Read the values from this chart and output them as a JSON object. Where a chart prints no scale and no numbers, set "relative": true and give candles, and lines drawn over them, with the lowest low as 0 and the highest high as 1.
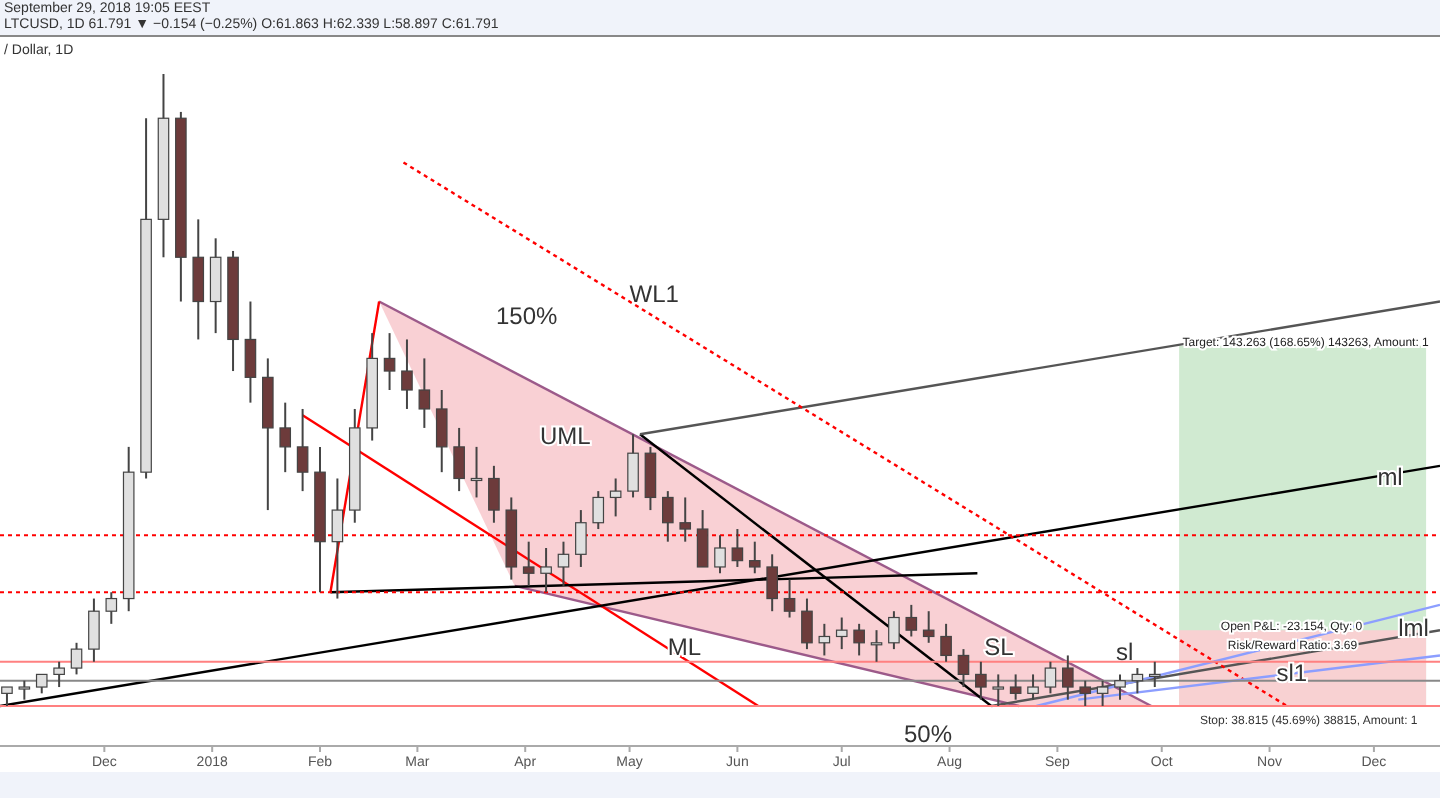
{
  "chart_data": {
    "type": "candlestick",
    "relative": true,
    "title": "LTCUSD, 1D 61.791 ▼ −0.154 (−0.25%) O:61.863 H:62.339 L:58.897 C:61.791",
    "subtitle": "/ Dollar, 1D",
    "xlim": [
      "2017-11-01",
      "2018-12-20"
    ],
    "xticks": [
      {
        "value": "2017-12-01",
        "label": "Dec"
      },
      {
        "value": "2018-01-01",
        "label": "2018"
      },
      {
        "value": "2018-02-01",
        "label": "Feb"
      },
      {
        "value": "2018-03-01",
        "label": "Mar"
      },
      {
        "value": "2018-04-01",
        "label": "Apr"
      },
      {
        "value": "2018-05-01",
        "label": "May"
      },
      {
        "value": "2018-06-01",
        "label": "Jun"
      },
      {
        "value": "2018-07-01",
        "label": "Jul"
      },
      {
        "value": "2018-08-01",
        "label": "Aug"
      },
      {
        "value": "2018-09-01",
        "label": "Sep"
      },
      {
        "value": "2018-10-01",
        "label": "Oct"
      },
      {
        "value": "2018-11-01",
        "label": "Nov"
      },
      {
        "value": "2018-12-01",
        "label": "Dec"
      }
    ],
    "x": [
      "2017-11-03",
      "2017-11-08",
      "2017-11-13",
      "2017-11-18",
      "2017-11-23",
      "2017-11-28",
      "2017-12-03",
      "2017-12-08",
      "2017-12-13",
      "2017-12-18",
      "2017-12-23",
      "2017-12-28",
      "2018-01-02",
      "2018-01-07",
      "2018-01-12",
      "2018-01-17",
      "2018-01-22",
      "2018-01-27",
      "2018-02-01",
      "2018-02-06",
      "2018-02-11",
      "2018-02-16",
      "2018-02-21",
      "2018-02-26",
      "2018-03-03",
      "2018-03-08",
      "2018-03-13",
      "2018-03-18",
      "2018-03-23",
      "2018-03-28",
      "2018-04-02",
      "2018-04-07",
      "2018-04-12",
      "2018-04-17",
      "2018-04-22",
      "2018-04-27",
      "2018-05-02",
      "2018-05-07",
      "2018-05-12",
      "2018-05-17",
      "2018-05-22",
      "2018-05-27",
      "2018-06-01",
      "2018-06-06",
      "2018-06-11",
      "2018-06-16",
      "2018-06-21",
      "2018-06-26",
      "2018-07-01",
      "2018-07-06",
      "2018-07-11",
      "2018-07-16",
      "2018-07-21",
      "2018-07-26",
      "2018-07-31",
      "2018-08-05",
      "2018-08-10",
      "2018-08-15",
      "2018-08-20",
      "2018-08-25",
      "2018-08-30",
      "2018-09-04",
      "2018-09-09",
      "2018-09-14",
      "2018-09-19",
      "2018-09-24",
      "2018-09-29"
    ],
    "ohlc": [
      [
        0.02,
        0.03,
        0.0,
        0.03
      ],
      [
        0.03,
        0.04,
        0.01,
        0.03
      ],
      [
        0.03,
        0.05,
        0.02,
        0.05
      ],
      [
        0.05,
        0.07,
        0.03,
        0.06
      ],
      [
        0.06,
        0.1,
        0.05,
        0.09
      ],
      [
        0.09,
        0.17,
        0.07,
        0.15
      ],
      [
        0.15,
        0.18,
        0.13,
        0.17
      ],
      [
        0.17,
        0.41,
        0.15,
        0.37
      ],
      [
        0.37,
        0.93,
        0.36,
        0.77
      ],
      [
        0.77,
        1.0,
        0.71,
        0.93
      ],
      [
        0.93,
        0.94,
        0.64,
        0.71
      ],
      [
        0.71,
        0.77,
        0.58,
        0.64
      ],
      [
        0.64,
        0.74,
        0.59,
        0.71
      ],
      [
        0.71,
        0.72,
        0.53,
        0.58
      ],
      [
        0.58,
        0.64,
        0.48,
        0.52
      ],
      [
        0.52,
        0.55,
        0.31,
        0.44
      ],
      [
        0.44,
        0.48,
        0.37,
        0.41
      ],
      [
        0.41,
        0.47,
        0.34,
        0.37
      ],
      [
        0.37,
        0.41,
        0.18,
        0.26
      ],
      [
        0.26,
        0.36,
        0.17,
        0.31
      ],
      [
        0.31,
        0.47,
        0.29,
        0.44
      ],
      [
        0.44,
        0.59,
        0.42,
        0.55
      ],
      [
        0.55,
        0.59,
        0.5,
        0.53
      ],
      [
        0.53,
        0.58,
        0.47,
        0.5
      ],
      [
        0.5,
        0.55,
        0.44,
        0.47
      ],
      [
        0.47,
        0.5,
        0.37,
        0.41
      ],
      [
        0.41,
        0.44,
        0.34,
        0.36
      ],
      [
        0.36,
        0.41,
        0.33,
        0.36
      ],
      [
        0.36,
        0.38,
        0.29,
        0.31
      ],
      [
        0.31,
        0.33,
        0.2,
        0.22
      ],
      [
        0.22,
        0.26,
        0.19,
        0.21
      ],
      [
        0.21,
        0.25,
        0.18,
        0.22
      ],
      [
        0.22,
        0.26,
        0.19,
        0.24
      ],
      [
        0.24,
        0.31,
        0.22,
        0.29
      ],
      [
        0.29,
        0.34,
        0.28,
        0.33
      ],
      [
        0.33,
        0.36,
        0.3,
        0.34
      ],
      [
        0.34,
        0.43,
        0.33,
        0.4
      ],
      [
        0.4,
        0.41,
        0.31,
        0.33
      ],
      [
        0.33,
        0.34,
        0.26,
        0.29
      ],
      [
        0.29,
        0.33,
        0.26,
        0.28
      ],
      [
        0.28,
        0.31,
        0.22,
        0.22
      ],
      [
        0.22,
        0.27,
        0.21,
        0.25
      ],
      [
        0.25,
        0.28,
        0.22,
        0.23
      ],
      [
        0.23,
        0.26,
        0.21,
        0.22
      ],
      [
        0.22,
        0.24,
        0.15,
        0.17
      ],
      [
        0.17,
        0.2,
        0.14,
        0.15
      ],
      [
        0.15,
        0.17,
        0.09,
        0.1
      ],
      [
        0.1,
        0.13,
        0.08,
        0.11
      ],
      [
        0.11,
        0.14,
        0.09,
        0.12
      ],
      [
        0.12,
        0.13,
        0.08,
        0.1
      ],
      [
        0.1,
        0.12,
        0.07,
        0.1
      ],
      [
        0.1,
        0.15,
        0.09,
        0.14
      ],
      [
        0.14,
        0.16,
        0.11,
        0.12
      ],
      [
        0.12,
        0.15,
        0.1,
        0.11
      ],
      [
        0.11,
        0.13,
        0.07,
        0.08
      ],
      [
        0.08,
        0.09,
        0.03,
        0.05
      ],
      [
        0.05,
        0.07,
        0.01,
        0.03
      ],
      [
        0.03,
        0.05,
        0.0,
        0.03
      ],
      [
        0.03,
        0.05,
        0.01,
        0.02
      ],
      [
        0.02,
        0.05,
        0.01,
        0.03
      ],
      [
        0.03,
        0.07,
        0.02,
        0.06
      ],
      [
        0.06,
        0.08,
        0.01,
        0.03
      ],
      [
        0.03,
        0.04,
        0.0,
        0.02
      ],
      [
        0.02,
        0.04,
        0.0,
        0.03
      ],
      [
        0.03,
        0.05,
        0.01,
        0.04
      ],
      [
        0.04,
        0.06,
        0.02,
        0.05
      ],
      [
        0.05,
        0.07,
        0.03,
        0.05
      ]
    ],
    "series": [
      {
        "type": "line",
        "color": "#9c5a8a",
        "x": [
          "2018-02-18",
          "2018-09-28"
        ],
        "values": [
          0.64,
          0
        ]
      },
      {
        "type": "line",
        "color": "#9c5a8a",
        "x": [
          "2018-03-29",
          "2018-08-21"
        ],
        "values": [
          0.19,
          0
        ]
      },
      {
        "type": "area",
        "color": "#c8e6c9",
        "x": [
          "2018-10-06",
          "2018-12-16"
        ],
        "values": [
          0.57,
          0.57
        ]
      },
      {
        "type": "area",
        "color": "#ffcdd2",
        "x": [
          "2018-10-06",
          "2018-12-16"
        ],
        "values": [
          0.12,
          0.12
        ]
      },
      {
        "type": "line",
        "color": "#ff0000",
        "x": [
          "2018-01-27",
          "2018-06-07"
        ],
        "values": [
          0.46,
          0
        ]
      },
      {
        "type": "line",
        "color": "#ff0000",
        "x": [
          "2018-02-04",
          "2018-02-18"
        ],
        "values": [
          0.18,
          0.64
        ]
      },
      {
        "type": "line",
        "color": "#000000",
        "x": [
          "2018-02-04",
          "2018-08-09"
        ],
        "values": [
          0.18,
          0.21
        ]
      },
      {
        "type": "line",
        "color": "#000000",
        "x": [
          "2017-11-01",
          "2018-12-20"
        ],
        "values": [
          0,
          0.38
        ]
      },
      {
        "type": "line",
        "color": "#000000",
        "x": [
          "2018-05-04",
          "2018-08-13"
        ],
        "values": [
          0.43,
          0
        ]
      },
      {
        "type": "line",
        "color": "#555555",
        "x": [
          "2018-05-04",
          "2018-12-20"
        ],
        "values": [
          0.43,
          0.64
        ]
      },
      {
        "type": "line",
        "color": "#555555",
        "x": [
          "2018-08-13",
          "2018-12-20"
        ],
        "values": [
          0,
          0.12
        ]
      },
      {
        "type": "line",
        "color": "#ff0000",
        "line_style": "dotted",
        "x": [
          "2018-02-25",
          "2018-11-06"
        ],
        "values": [
          0.86,
          0
        ]
      },
      {
        "type": "line",
        "color": "#8c9eff",
        "x": [
          "2018-08-26",
          "2018-12-20"
        ],
        "values": [
          0,
          0.16
        ]
      },
      {
        "type": "line",
        "color": "#8c9eff",
        "x": [
          "2018-09-07",
          "2018-12-20"
        ],
        "values": [
          0.01,
          0.08
        ]
      }
    ],
    "ref_lines": [
      {
        "axis": "y",
        "value": 0.27,
        "color": "#ff0000",
        "line_style": "dotted"
      },
      {
        "axis": "y",
        "value": 0.18,
        "color": "#ff0000",
        "line_style": "dotted"
      },
      {
        "axis": "y",
        "value": 0.07,
        "color": "#ff8080",
        "line_style": "solid"
      },
      {
        "axis": "y",
        "value": 0.04,
        "color": "#888888",
        "line_style": "solid"
      },
      {
        "axis": "y",
        "value": 0,
        "color": "#ff8080",
        "line_style": "solid"
      }
    ],
    "annotations": [
      "September 29, 2018 19:05 EEST",
      "150%",
      "UML",
      "50%",
      "sl",
      "Stop: 38.815 (45.69%) 38815, Amount: 1",
      {
        "text": "WL1",
        "x": "2018-05-01",
        "y": 0.64
      },
      {
        "text": "ML",
        "x": "2018-05-12",
        "y": 0.08
      },
      {
        "text": "SL",
        "x": "2018-08-11",
        "y": 0.08
      },
      {
        "text": "sl1",
        "x": "2018-11-03",
        "y": 0.04
      },
      {
        "text": "ml",
        "x": "2018-12-02",
        "y": 0.35
      },
      {
        "text": "lml",
        "x": "2018-12-08",
        "y": 0.11
      },
      {
        "text": "Target: 143.263 (168.65%) 143263, Amount: 1",
        "x": "2018-10-07",
        "y": 0.57
      },
      {
        "text": "Open P&L: -23.154, Qty: 0",
        "x": "2018-10-18",
        "y": 0.12
      },
      {
        "text": "Risk/Reward Ratio: 3.69",
        "x": "2018-10-20",
        "y": 0.09
      }
    ]
  }
}
